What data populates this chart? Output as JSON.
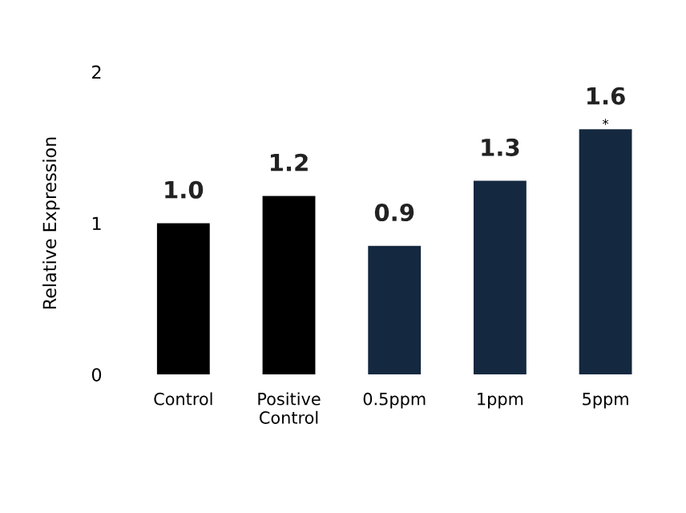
{
  "chart_data": {
    "type": "bar",
    "ylabel": "Relative Expression",
    "categories": [
      "Control",
      "Positive\nControl",
      "0.5ppm",
      "1ppm",
      "5ppm"
    ],
    "values": [
      1.0,
      1.18,
      0.85,
      1.28,
      1.62
    ],
    "value_labels": [
      "1.0",
      "1.2",
      "0.9",
      "1.3",
      "1.6"
    ],
    "colors": [
      "#000000",
      "#000000",
      "#14283f",
      "#14283f",
      "#14283f"
    ],
    "ylim": [
      0,
      2
    ],
    "yticks": [
      0,
      1,
      2
    ],
    "grid": false,
    "legend": false,
    "annotations": [
      {
        "text": "*",
        "x": "5ppm",
        "y": 1.62
      }
    ]
  }
}
